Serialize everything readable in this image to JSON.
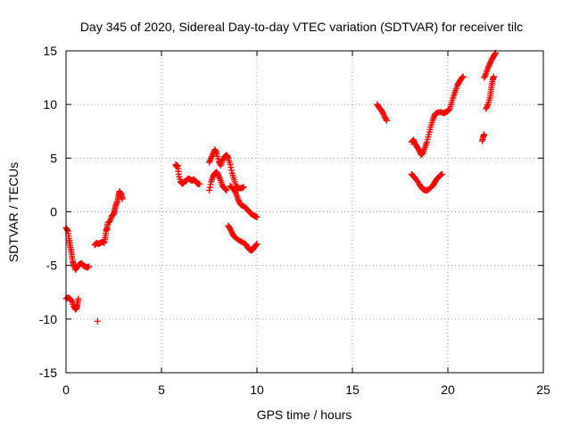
{
  "chart_data": {
    "type": "scatter",
    "title": "Day 345 of 2020, Sidereal Day-to-day VTEC variation (SDTVAR) for receiver tilc",
    "xlabel": "GPS time / hours",
    "ylabel": "SDTVAR / TECUs",
    "xlim": [
      0,
      25
    ],
    "ylim": [
      -15,
      15
    ],
    "xticks": [
      "0",
      "5",
      "10",
      "15",
      "20",
      "25"
    ],
    "yticks": [
      "15",
      "10",
      "5",
      "0",
      "-5",
      "-10",
      "-15"
    ],
    "grid": true,
    "marker": "plus",
    "color": "#ff0000",
    "segments": [
      [
        [
          0.0,
          -1.5
        ],
        [
          0.1,
          -1.8
        ],
        [
          0.15,
          -2.5
        ],
        [
          0.2,
          -3.0
        ],
        [
          0.25,
          -3.5
        ],
        [
          0.3,
          -4.0
        ],
        [
          0.35,
          -4.6
        ],
        [
          0.4,
          -5.0
        ],
        [
          0.5,
          -5.4
        ],
        [
          0.6,
          -5.1
        ],
        [
          0.7,
          -4.9
        ],
        [
          0.8,
          -4.8
        ],
        [
          0.9,
          -5.0
        ],
        [
          1.0,
          -5.1
        ],
        [
          1.1,
          -5.2
        ],
        [
          1.2,
          -5.1
        ]
      ],
      [
        [
          0.0,
          -8.1
        ],
        [
          0.1,
          -8.0
        ],
        [
          0.2,
          -8.1
        ],
        [
          0.3,
          -8.3
        ],
        [
          0.4,
          -8.8
        ],
        [
          0.5,
          -9.1
        ],
        [
          0.55,
          -9.0
        ],
        [
          0.6,
          -8.6
        ],
        [
          0.65,
          -8.1
        ]
      ],
      [
        [
          1.65,
          -10.2
        ]
      ],
      [
        [
          1.5,
          -3.1
        ],
        [
          1.6,
          -2.9
        ],
        [
          1.7,
          -3.0
        ],
        [
          1.8,
          -2.9
        ],
        [
          1.9,
          -2.8
        ],
        [
          2.0,
          -2.9
        ],
        [
          2.05,
          -2.4
        ],
        [
          2.1,
          -1.8
        ],
        [
          2.15,
          -1.5
        ],
        [
          2.2,
          -1.0
        ],
        [
          2.3,
          -0.9
        ],
        [
          2.4,
          -0.4
        ],
        [
          2.5,
          -0.2
        ],
        [
          2.55,
          0.2
        ],
        [
          2.6,
          0.6
        ],
        [
          2.7,
          1.0
        ],
        [
          2.75,
          1.5
        ],
        [
          2.8,
          1.9
        ],
        [
          2.9,
          1.6
        ],
        [
          2.95,
          1.2
        ]
      ],
      [
        [
          5.75,
          4.4
        ],
        [
          5.8,
          4.2
        ],
        [
          5.85,
          4.3
        ],
        [
          5.9,
          3.5
        ],
        [
          6.0,
          2.8
        ],
        [
          6.1,
          2.6
        ],
        [
          6.2,
          2.8
        ],
        [
          6.3,
          2.9
        ],
        [
          6.4,
          3.1
        ],
        [
          6.5,
          3.0
        ],
        [
          6.6,
          2.9
        ],
        [
          6.7,
          3.0
        ],
        [
          6.8,
          2.8
        ],
        [
          6.9,
          2.6
        ],
        [
          7.0,
          2.6
        ]
      ],
      [
        [
          7.5,
          2.0
        ],
        [
          7.6,
          2.8
        ],
        [
          7.7,
          3.3
        ],
        [
          7.8,
          3.6
        ],
        [
          7.9,
          3.7
        ],
        [
          8.0,
          3.3
        ],
        [
          8.1,
          2.9
        ],
        [
          8.2,
          2.4
        ],
        [
          8.3,
          2.2
        ],
        [
          8.4,
          2.0
        ]
      ],
      [
        [
          7.5,
          4.6
        ],
        [
          7.6,
          5.0
        ],
        [
          7.7,
          5.4
        ],
        [
          7.8,
          5.8
        ],
        [
          7.9,
          5.4
        ],
        [
          8.0,
          4.7
        ],
        [
          8.1,
          4.3
        ],
        [
          8.2,
          4.8
        ],
        [
          8.3,
          5.1
        ],
        [
          8.4,
          5.3
        ],
        [
          8.5,
          5.0
        ],
        [
          8.6,
          4.4
        ],
        [
          8.7,
          3.6
        ],
        [
          8.8,
          3.0
        ],
        [
          8.9,
          2.4
        ],
        [
          9.0,
          2.2
        ],
        [
          9.1,
          2.2
        ],
        [
          9.2,
          2.2
        ],
        [
          9.3,
          2.3
        ]
      ],
      [
        [
          8.6,
          2.4
        ],
        [
          8.7,
          2.2
        ],
        [
          8.8,
          2.1
        ],
        [
          8.9,
          1.7
        ],
        [
          9.0,
          1.2
        ],
        [
          9.1,
          0.8
        ],
        [
          9.2,
          0.6
        ],
        [
          9.4,
          0.4
        ],
        [
          9.5,
          0.2
        ],
        [
          9.6,
          0.0
        ],
        [
          9.7,
          -0.2
        ],
        [
          9.8,
          -0.3
        ],
        [
          9.9,
          -0.4
        ],
        [
          10.0,
          -0.5
        ]
      ],
      [
        [
          8.5,
          -1.3
        ],
        [
          8.6,
          -1.6
        ],
        [
          8.7,
          -2.0
        ],
        [
          8.8,
          -2.3
        ],
        [
          9.0,
          -2.6
        ],
        [
          9.2,
          -2.8
        ],
        [
          9.4,
          -3.0
        ],
        [
          9.5,
          -3.3
        ],
        [
          9.6,
          -3.5
        ],
        [
          9.7,
          -3.6
        ],
        [
          9.8,
          -3.5
        ],
        [
          9.9,
          -3.2
        ],
        [
          10.0,
          -3.0
        ]
      ],
      [
        [
          16.3,
          10.0
        ],
        [
          16.4,
          9.7
        ],
        [
          16.5,
          9.5
        ],
        [
          16.6,
          9.2
        ],
        [
          16.7,
          8.8
        ],
        [
          16.8,
          8.5
        ]
      ],
      [
        [
          18.1,
          6.5
        ],
        [
          18.2,
          6.7
        ],
        [
          18.3,
          6.3
        ],
        [
          18.4,
          6.0
        ],
        [
          18.5,
          5.7
        ],
        [
          18.6,
          5.3
        ],
        [
          18.7,
          5.5
        ],
        [
          18.8,
          6.0
        ],
        [
          18.9,
          6.5
        ],
        [
          19.0,
          7.2
        ],
        [
          19.1,
          7.9
        ],
        [
          19.2,
          8.5
        ],
        [
          19.3,
          9.0
        ],
        [
          19.4,
          9.2
        ],
        [
          19.6,
          9.3
        ],
        [
          19.8,
          9.2
        ],
        [
          19.9,
          9.3
        ],
        [
          20.0,
          9.4
        ],
        [
          20.1,
          9.6
        ],
        [
          20.2,
          10.2
        ],
        [
          20.3,
          10.8
        ],
        [
          20.4,
          11.3
        ],
        [
          20.5,
          11.8
        ],
        [
          20.6,
          12.1
        ],
        [
          20.7,
          12.4
        ],
        [
          20.8,
          12.6
        ]
      ],
      [
        [
          18.1,
          3.5
        ],
        [
          18.2,
          3.3
        ],
        [
          18.3,
          3.1
        ],
        [
          18.5,
          2.6
        ],
        [
          18.6,
          2.3
        ],
        [
          18.7,
          2.1
        ],
        [
          18.8,
          2.0
        ],
        [
          18.9,
          2.0
        ],
        [
          19.0,
          2.1
        ],
        [
          19.2,
          2.4
        ],
        [
          19.3,
          2.7
        ],
        [
          19.4,
          3.0
        ],
        [
          19.5,
          3.2
        ],
        [
          19.6,
          3.4
        ],
        [
          19.7,
          3.5
        ]
      ],
      [
        [
          21.8,
          6.6
        ],
        [
          21.85,
          7.0
        ],
        [
          21.9,
          7.2
        ]
      ],
      [
        [
          22.0,
          9.6
        ],
        [
          22.1,
          10.0
        ],
        [
          22.2,
          10.6
        ],
        [
          22.25,
          11.2
        ],
        [
          22.3,
          11.8
        ],
        [
          22.35,
          12.3
        ],
        [
          22.4,
          12.6
        ]
      ],
      [
        [
          21.9,
          12.5
        ],
        [
          22.0,
          12.9
        ],
        [
          22.1,
          13.4
        ],
        [
          22.2,
          13.8
        ],
        [
          22.3,
          14.2
        ],
        [
          22.4,
          14.5
        ],
        [
          22.5,
          14.8
        ]
      ]
    ]
  }
}
